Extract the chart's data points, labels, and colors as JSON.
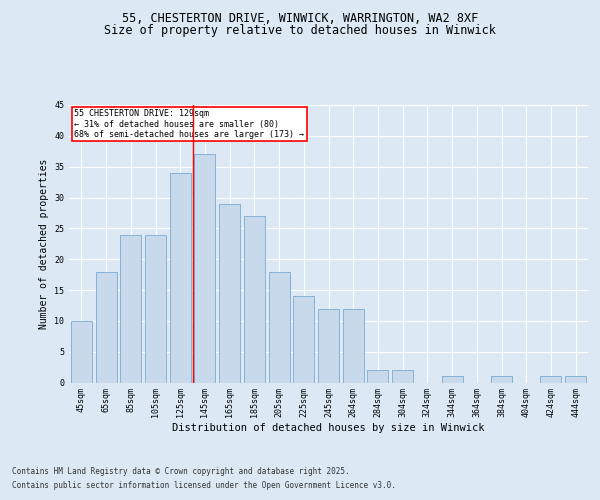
{
  "title_line1": "55, CHESTERTON DRIVE, WINWICK, WARRINGTON, WA2 8XF",
  "title_line2": "Size of property relative to detached houses in Winwick",
  "xlabel": "Distribution of detached houses by size in Winwick",
  "ylabel": "Number of detached properties",
  "categories": [
    "45sqm",
    "65sqm",
    "85sqm",
    "105sqm",
    "125sqm",
    "145sqm",
    "165sqm",
    "185sqm",
    "205sqm",
    "225sqm",
    "245sqm",
    "264sqm",
    "284sqm",
    "304sqm",
    "324sqm",
    "344sqm",
    "364sqm",
    "384sqm",
    "404sqm",
    "424sqm",
    "444sqm"
  ],
  "values": [
    10,
    18,
    24,
    24,
    34,
    37,
    29,
    27,
    18,
    14,
    12,
    12,
    2,
    2,
    0,
    1,
    0,
    1,
    0,
    1,
    1
  ],
  "bar_color": "#c9d9ec",
  "bar_edge_color": "#7aabcf",
  "background_color": "#dce9f5",
  "plot_bg_color": "#dce9f5",
  "grid_color": "#ffffff",
  "annotation_box_text": "55 CHESTERTON DRIVE: 129sqm\n← 31% of detached houses are smaller (80)\n68% of semi-detached houses are larger (173) →",
  "annotation_box_color": "red",
  "red_line_x": 4.5,
  "ylim": [
    0,
    45
  ],
  "yticks": [
    0,
    5,
    10,
    15,
    20,
    25,
    30,
    35,
    40,
    45
  ],
  "footer_line1": "Contains HM Land Registry data © Crown copyright and database right 2025.",
  "footer_line2": "Contains public sector information licensed under the Open Government Licence v3.0.",
  "title_fontsize": 8.5,
  "subtitle_fontsize": 8.5,
  "axis_label_fontsize": 7.5,
  "tick_fontsize": 6.0,
  "annotation_fontsize": 6.0,
  "footer_fontsize": 5.5,
  "ylabel_fontsize": 7.0
}
